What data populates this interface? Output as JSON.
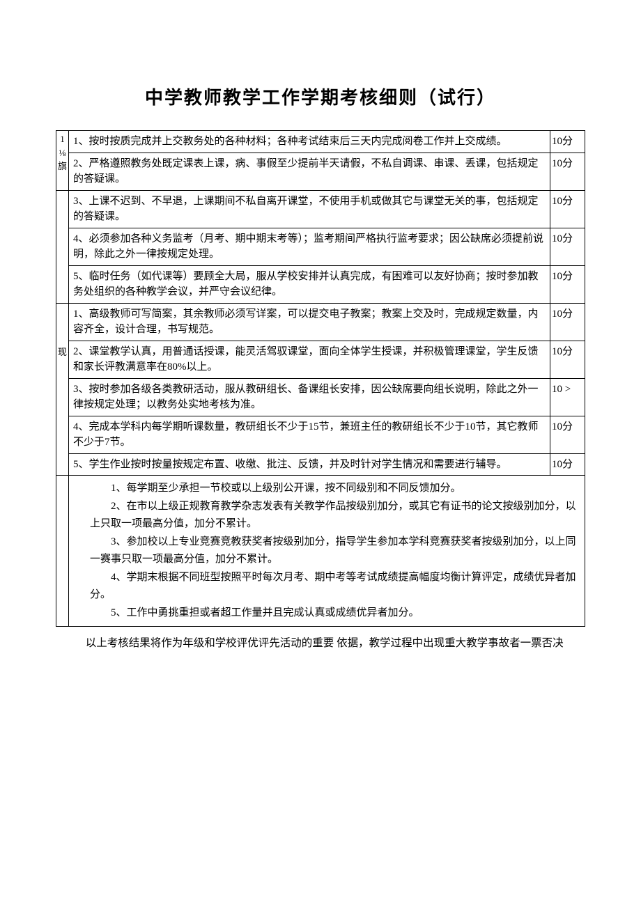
{
  "title": "中学教师教学工作学期考核细则（试行）",
  "category_a": {
    "label1": "1",
    "label2": "⅛",
    "label3": "旗",
    "rows": [
      {
        "desc": "1、按时按质完成并上交教务处的各种材料；各种考试结束后三天内完成阅卷工作并上交成绩。",
        "score": "10分"
      },
      {
        "desc": "2、严格遵照教务处既定课表上课，病、事假至少提前半天请假，不私自调课、串课、丢课，包括规定的答疑课。",
        "score": "10分"
      },
      {
        "desc": "3、上课不迟到、不早退，上课期间不私自离开课堂，不使用手机或做其它与课堂无关的事，包括规定的答疑课。",
        "score": "10分"
      },
      {
        "desc": "4、必须参加各种义务监考（月考、期中期末考等）；监考期间严格执行监考要求；因公缺席必须提前说明，除此之外一律按规定处理。",
        "score": "10分"
      },
      {
        "desc": "5、临时任务（如代课等）要顾全大局，服从学校安排并认真完成，有困难可以友好协商；按时参加教务处组织的各种教学会议，并严守会议纪律。",
        "score": "10分"
      }
    ]
  },
  "category_b": {
    "label": "现",
    "rows": [
      {
        "desc": "1、高级教师可写简案，其余教师必须写详案，可以提交电子教案；教案上交及时，完成规定数量，内容齐全，设计合理，书写规范。",
        "score": "10分"
      },
      {
        "desc": "2、课堂教学认真，用普通话授课，能灵活驾驭课堂，面向全体学生授课，并积极管理课堂，学生反馈和家长评教满意率在80%以上。",
        "score": "10分"
      },
      {
        "desc": "3、按时参加各级各类教研活动，服从教研组长、备课组长安排，因公缺席要向组长说明，除此之外一律按规定处理；以教务处实地考核为准。",
        "score": "10 >"
      },
      {
        "desc": "4、完成本学科内每学期听课数量，教研组长不少于15节，兼班主任的教研组长不少于10节，其它教师不少于7节。",
        "score": "10分"
      },
      {
        "desc": "5、学生作业按时按量按规定布置、收缴、批注、反馈，并及时针对学生情况和需要进行辅导。",
        "score": "10分"
      }
    ]
  },
  "bonus": {
    "items": [
      "1、每学期至少承担一节校或以上级别公开课，按不同级别和不同反馈加分。",
      "2、在市以上级正规教育教学杂志发表有关教学作品按级别加分，或其它有证书的论文按级别加分，以上只取一项最高分值，加分不累计。",
      "3、参加校以上专业竞赛竞教获奖者按级别加分，指导学生参加本学科竞赛获奖者按级别加分，以上同一赛事只取一项最高分值，加分不累计。",
      "4、学期末根据不同班型按照平时每次月考、期中考等考试成绩提高幅度均衡计算评定，成绩优异者加分。",
      "5、工作中勇挑重担或者超工作量并且完成认真或成绩优异者加分。"
    ]
  },
  "footer": "以上考核结果将作为年级和学校评优评先活动的重要 依据，教学过程中出现重大教学事故者一票否决",
  "colors": {
    "background": "#ffffff",
    "text": "#000000",
    "border": "#000000"
  },
  "fonts": {
    "body_size": 15,
    "title_size": 26,
    "line_height": 1.5
  }
}
